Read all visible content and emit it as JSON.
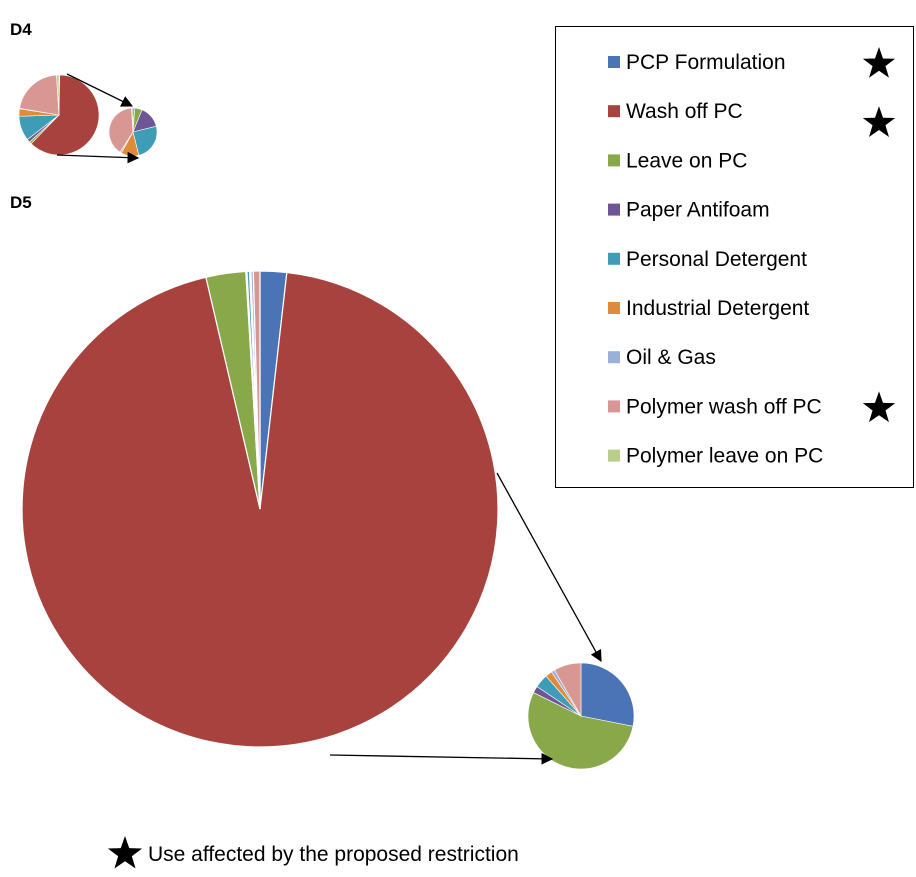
{
  "colors": {
    "PCP Formulation": "#4a74b5",
    "Wash off PC": "#a8423f",
    "Leave on PC": "#89a84a",
    "Paper Antifoam": "#6e5596",
    "Personal Detergent": "#3f9cb6",
    "Industrial Detergent": "#e08a3c",
    "Oil & Gas": "#9ab0d8",
    "Polymer wash off PC": "#d99794",
    "Polymer leave on PC": "#b8cf8c"
  },
  "star_icon": "black-star-icon",
  "chart_data": [
    {
      "type": "pie",
      "panel_label": "D4",
      "main_pie": {
        "categories": [
          "PCP Formulation",
          "Wash off PC",
          "Leave on PC",
          "Paper Antifoam",
          "Personal Detergent",
          "Industrial Detergent",
          "Oil & Gas",
          "Polymer wash off PC",
          "Polymer leave on PC"
        ],
        "values": [
          0.3,
          62,
          0.9,
          1.3,
          10,
          3,
          0.2,
          21.3,
          1.0
        ]
      },
      "detail_pie": {
        "categories": [
          "PCP Formulation",
          "Leave on PC",
          "Paper Antifoam",
          "Personal Detergent",
          "Industrial Detergent",
          "Oil & Gas",
          "Polymer wash off PC",
          "Polymer leave on PC"
        ],
        "values": [
          1.2,
          5,
          15,
          25,
          12,
          1,
          40,
          1
        ]
      }
    },
    {
      "type": "pie",
      "panel_label": "D5",
      "main_pie": {
        "categories": [
          "PCP Formulation",
          "Wash off PC",
          "Leave on PC",
          "Paper Antifoam",
          "Personal Detergent",
          "Industrial Detergent",
          "Oil & Gas",
          "Polymer wash off PC",
          "Polymer leave on PC"
        ],
        "values": [
          1.8,
          94.6,
          2.7,
          0.08,
          0.17,
          0.09,
          0.16,
          0.45,
          0.0
        ]
      },
      "detail_pie": {
        "categories": [
          "PCP Formulation",
          "Leave on PC",
          "Paper Antifoam",
          "Personal Detergent",
          "Industrial Detergent",
          "Oil & Gas",
          "Polymer wash off PC",
          "Polymer leave on PC"
        ],
        "values": [
          27,
          52,
          2,
          4,
          2,
          1,
          8,
          0
        ]
      }
    }
  ],
  "legend": {
    "entries": [
      {
        "label": "PCP Formulation",
        "starred": true
      },
      {
        "label": "Wash off PC",
        "starred": true
      },
      {
        "label": "Leave on PC",
        "starred": false
      },
      {
        "label": "Paper Antifoam",
        "starred": false
      },
      {
        "label": "Personal Detergent",
        "starred": false
      },
      {
        "label": "Industrial Detergent",
        "starred": false
      },
      {
        "label": "Oil & Gas",
        "starred": false
      },
      {
        "label": "Polymer wash off PC",
        "starred": true
      },
      {
        "label": "Polymer leave on PC",
        "starred": false
      }
    ]
  },
  "footnote": {
    "text": "Use affected by the proposed restriction"
  }
}
